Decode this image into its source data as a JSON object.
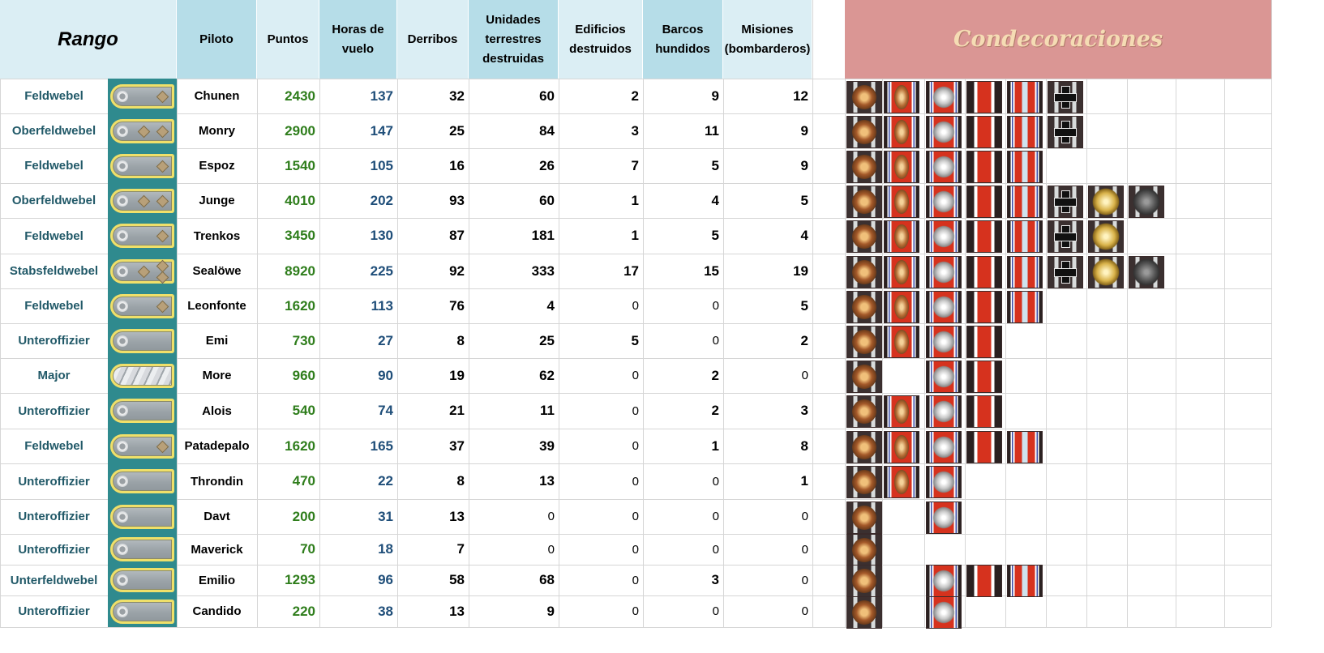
{
  "colors": {
    "header_light": "#dbeef4",
    "header_dark": "#b6dde8",
    "rank_text": "#215968",
    "strap_bg": "#2f8a8e",
    "points_text": "#2e7d1b",
    "hours_text": "#1f4e79",
    "decor_header": "#da9694",
    "decor_title": "#f5dcb4"
  },
  "headers": {
    "rango": "Rango",
    "piloto": "Piloto",
    "puntos": "Puntos",
    "horas": "Horas de vuelo",
    "derribos": "Derribos",
    "unidades": "Unidades terrestres destruidas",
    "edificios": "Edificios destruidos",
    "barcos": "Barcos hundidos",
    "misiones": "Misiones (bombarderos)",
    "condecoraciones": "Condecoraciones"
  },
  "rows": [
    {
      "rank": "Feldwebel",
      "strap": "feldwebel",
      "pilot": "Chunen",
      "points": "2430",
      "hours": "137",
      "kills": "32",
      "ground": "60",
      "buildings": "2",
      "ships": "9",
      "missions": "12",
      "medals": [
        "eagle",
        "pilot",
        "wing",
        "red",
        "bar",
        "cross"
      ]
    },
    {
      "rank": "Oberfeldwebel",
      "strap": "oberfeldwebel",
      "pilot": "Monry",
      "points": "2900",
      "hours": "147",
      "kills": "25",
      "ground": "84",
      "buildings": "3",
      "ships": "11",
      "missions": "9",
      "medals": [
        "eagle",
        "pilot",
        "wing",
        "red",
        "bar",
        "cross"
      ]
    },
    {
      "rank": "Feldwebel",
      "strap": "feldwebel",
      "pilot": "Espoz",
      "points": "1540",
      "hours": "105",
      "kills": "16",
      "ground": "26",
      "buildings": "7",
      "ships": "5",
      "missions": "9",
      "medals": [
        "eagle",
        "pilot",
        "wing",
        "red",
        "bar"
      ]
    },
    {
      "rank": "Oberfeldwebel",
      "strap": "oberfeldwebel",
      "pilot": "Junge",
      "points": "4010",
      "hours": "202",
      "kills": "93",
      "ground": "60",
      "buildings": "1",
      "ships": "4",
      "missions": "5",
      "medals": [
        "eagle",
        "pilot",
        "wing",
        "red",
        "bar",
        "cross",
        "oak",
        "oakd"
      ]
    },
    {
      "rank": "Feldwebel",
      "strap": "feldwebel",
      "pilot": "Trenkos",
      "points": "3450",
      "hours": "130",
      "kills": "87",
      "ground": "181",
      "buildings": "1",
      "ships": "5",
      "missions": "4",
      "medals": [
        "eagle",
        "pilot",
        "wing",
        "red",
        "bar",
        "cross",
        "oak"
      ]
    },
    {
      "rank": "Stabsfeldwebel",
      "strap": "stabsfeldwebel",
      "pilot": "Sealöwe",
      "points": "8920",
      "hours": "225",
      "kills": "92",
      "ground": "333",
      "buildings": "17",
      "ships": "15",
      "missions": "19",
      "medals": [
        "eagle",
        "pilot",
        "wing",
        "red",
        "bar",
        "cross",
        "oak",
        "oakd"
      ]
    },
    {
      "rank": "Feldwebel",
      "strap": "feldwebel",
      "pilot": "Leonfonte",
      "points": "1620",
      "hours": "113",
      "kills": "76",
      "ground": "4",
      "buildings": "0",
      "ships": "0",
      "missions": "5",
      "medals": [
        "eagle",
        "pilot",
        "wing",
        "red",
        "bar"
      ]
    },
    {
      "rank": "Unteroffizier",
      "strap": "unteroffizier",
      "pilot": "Emi",
      "points": "730",
      "hours": "27",
      "kills": "8",
      "ground": "25",
      "buildings": "5",
      "ships": "0",
      "missions": "2",
      "medals": [
        "eagle",
        "pilot",
        "wing",
        "red"
      ]
    },
    {
      "rank": "Major",
      "strap": "major",
      "pilot": "More",
      "points": "960",
      "hours": "90",
      "kills": "19",
      "ground": "62",
      "buildings": "0",
      "ships": "2",
      "missions": "0",
      "medals": [
        "eagle",
        "",
        "wing",
        "red"
      ]
    },
    {
      "rank": "Unteroffizier",
      "strap": "unteroffizier",
      "pilot": "Alois",
      "points": "540",
      "hours": "74",
      "kills": "21",
      "ground": "11",
      "buildings": "0",
      "ships": "2",
      "missions": "3",
      "medals": [
        "eagle",
        "pilot",
        "wing",
        "red"
      ]
    },
    {
      "rank": "Feldwebel",
      "strap": "feldwebel",
      "pilot": "Patadepalo",
      "points": "1620",
      "hours": "165",
      "kills": "37",
      "ground": "39",
      "buildings": "0",
      "ships": "1",
      "missions": "8",
      "medals": [
        "eagle",
        "pilot",
        "wing",
        "red",
        "bar"
      ]
    },
    {
      "rank": "Unteroffizier",
      "strap": "unteroffizier",
      "pilot": "Throndin",
      "points": "470",
      "hours": "22",
      "kills": "8",
      "ground": "13",
      "buildings": "0",
      "ships": "0",
      "missions": "1",
      "medals": [
        "eagle",
        "pilot",
        "wing"
      ]
    },
    {
      "rank": "Unteroffizier",
      "strap": "unteroffizier",
      "pilot": "Davt",
      "points": "200",
      "hours": "31",
      "kills": "13",
      "ground": "0",
      "buildings": "0",
      "ships": "0",
      "missions": "0",
      "medals": [
        "eagle",
        "",
        "wing"
      ]
    },
    {
      "rank": "Unteroffizier",
      "strap": "unteroffizier",
      "pilot": "Maverick",
      "points": "70",
      "hours": "18",
      "kills": "7",
      "ground": "0",
      "buildings": "0",
      "ships": "0",
      "missions": "0",
      "medals": [
        "eagle"
      ]
    },
    {
      "rank": "Unterfeldwebel",
      "strap": "unterfeldwebel",
      "pilot": "Emilio",
      "points": "1293",
      "hours": "96",
      "kills": "58",
      "ground": "68",
      "buildings": "0",
      "ships": "3",
      "missions": "0",
      "medals": [
        "eagle",
        "",
        "wing",
        "red",
        "bar"
      ]
    },
    {
      "rank": "Unteroffizier",
      "strap": "unteroffizier",
      "pilot": "Candido",
      "points": "220",
      "hours": "38",
      "kills": "13",
      "ground": "9",
      "buildings": "0",
      "ships": "0",
      "missions": "0",
      "medals": [
        "eagle",
        "",
        "wing"
      ]
    }
  ]
}
